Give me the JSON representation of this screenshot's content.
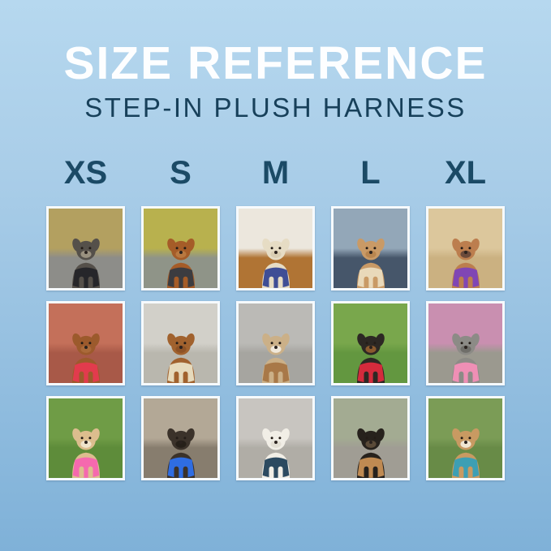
{
  "title": "SIZE REFERENCE",
  "subtitle": "STEP-IN PLUSH HARNESS",
  "sizes": [
    "XS",
    "S",
    "M",
    "L",
    "XL"
  ],
  "theme": {
    "background_top": "#b6d8ef",
    "background_bottom": "#7fb1d8",
    "title_color": "#fdfeff",
    "subtitle_color": "#17405a",
    "size_label_color": "#1b4a66",
    "photo_border_color": "#f6fafd"
  },
  "grid": {
    "rows": 3,
    "columns": 5,
    "photos": [
      {
        "size": "XS",
        "row": 1,
        "description": "Grey schnauzer mix wearing a black harness on a woodland gravel path",
        "harness": "black",
        "colors": {
          "scene_top": "#b3a060",
          "scene_bottom": "#8d8d89",
          "dog": "#55504a",
          "muzzle": "#9a917f",
          "harness": "#26262a"
        }
      },
      {
        "size": "S",
        "row": 1,
        "description": "Red dachshund wearing a black harness in front of autumn yellow trees",
        "harness": "black",
        "colors": {
          "scene_top": "#b8b14e",
          "scene_bottom": "#8f9488",
          "dog": "#a55c28",
          "muzzle": "#b87840",
          "harness": "#3c3c40"
        }
      },
      {
        "size": "M",
        "row": 1,
        "description": "Cream poodle mix wearing a navy plush harness indoors by white blinds on a wood floor",
        "harness": "navy blue",
        "colors": {
          "scene_top": "#ece7dd",
          "scene_bottom": "#b07434",
          "dog": "#e6dcc4",
          "muzzle": "#d9cdb2",
          "harness": "#3f4e95"
        }
      },
      {
        "size": "L",
        "row": 1,
        "description": "Apricot goldendoodle wearing a cream harness sitting in a car",
        "harness": "cream",
        "colors": {
          "scene_top": "#93a7b8",
          "scene_bottom": "#46566a",
          "dog": "#c99a66",
          "muzzle": "#b8854f",
          "harness": "#e9d9ba"
        }
      },
      {
        "size": "XL",
        "row": 1,
        "description": "Fawn French bulldog wearing a purple harness with paws up on beach sand",
        "harness": "purple",
        "colors": {
          "scene_top": "#dcc79c",
          "scene_bottom": "#cbb181",
          "dog": "#bc7e4e",
          "muzzle": "#6b4a3a",
          "harness": "#8046b4"
        }
      },
      {
        "size": "XS",
        "row": 2,
        "description": "Ruby cavapoo wearing a red harness sitting in colorful fall leaves",
        "harness": "red",
        "colors": {
          "scene_top": "#c4705a",
          "scene_bottom": "#a85948",
          "dog": "#9c5a2c",
          "muzzle": "#aa6a3a",
          "harness": "#e23b4d"
        }
      },
      {
        "size": "S",
        "row": 2,
        "description": "Ruby cavalier King Charles spaniel wearing a cream harness on a concrete sidewalk",
        "harness": "cream",
        "colors": {
          "scene_top": "#d2d0c9",
          "scene_bottom": "#b9b7ae",
          "dog": "#a1622e",
          "muzzle": "#8d5226",
          "harness": "#e6dabc"
        }
      },
      {
        "size": "M",
        "row": 2,
        "description": "Red merle Australian shepherd puppy wearing a tan harness on a grey sidewalk",
        "harness": "tan",
        "colors": {
          "scene_top": "#bbbab6",
          "scene_bottom": "#a6a5a0",
          "dog": "#cbb088",
          "muzzle": "#f0e8da",
          "harness": "#a87848"
        }
      },
      {
        "size": "L",
        "row": 2,
        "description": "Black-and-tan pinscher with tongue out wearing a red harness on green grass",
        "harness": "red",
        "colors": {
          "scene_top": "#79a74c",
          "scene_bottom": "#639740",
          "dog": "#2d2824",
          "muzzle": "#8a5a2e",
          "harness": "#d42b3c"
        }
      },
      {
        "size": "XL",
        "row": 2,
        "description": "Grey schnauzer wearing a pink harness beside pink azalea flowers",
        "harness": "pink",
        "colors": {
          "scene_top": "#c98fb0",
          "scene_bottom": "#9b998f",
          "dog": "#8c8b86",
          "muzzle": "#6f6e69",
          "harness": "#ef8fb5"
        }
      },
      {
        "size": "XS",
        "row": 3,
        "description": "Tan chihuahua looking up wearing a pink harness on grass",
        "harness": "pink",
        "colors": {
          "scene_top": "#6f9c46",
          "scene_bottom": "#5e8c3a",
          "dog": "#dcbd8e",
          "muzzle": "#efe3cb",
          "harness": "#f569ae"
        }
      },
      {
        "size": "S",
        "row": 3,
        "description": "Dark brussels griffon wearing a blue harness with a bone-shaped tag",
        "harness": "blue",
        "colors": {
          "scene_top": "#b3a896",
          "scene_bottom": "#877d6e",
          "dog": "#3b322a",
          "muzzle": "#262019",
          "harness": "#2f6de2"
        }
      },
      {
        "size": "M",
        "row": 3,
        "description": "White bichon wearing a navy harness with a teal leash on pavement",
        "harness": "navy",
        "colors": {
          "scene_top": "#c8c5c0",
          "scene_bottom": "#b0ada6",
          "dog": "#f1eee6",
          "muzzle": "#e3dfd4",
          "harness": "#2c4a60"
        }
      },
      {
        "size": "L",
        "row": 3,
        "description": "Black dachshund wearing a tan harness carrying a stick on a path",
        "harness": "tan",
        "colors": {
          "scene_top": "#a3ab92",
          "scene_bottom": "#a09d94",
          "dog": "#27221d",
          "muzzle": "#5a4a38",
          "harness": "#bf8a52"
        }
      },
      {
        "size": "XL",
        "row": 3,
        "description": "Beagle wearing a teal harness on autumn grass with fallen leaves",
        "harness": "teal",
        "colors": {
          "scene_top": "#7b9c56",
          "scene_bottom": "#688b47",
          "dog": "#c89a62",
          "muzzle": "#f0e6d2",
          "harness": "#3d9fb4"
        }
      }
    ]
  }
}
